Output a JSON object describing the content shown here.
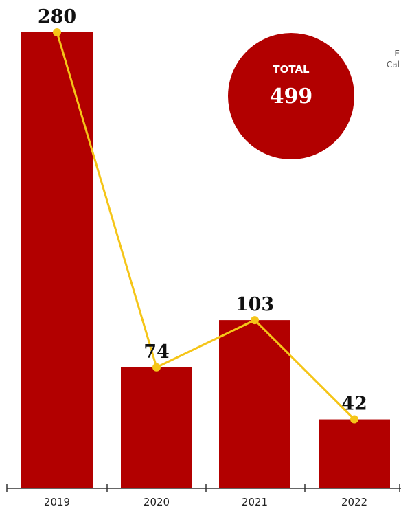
{
  "chart_data": {
    "type": "bar",
    "categories": [
      "2019",
      "2020",
      "2021",
      "2022"
    ],
    "values": [
      280,
      74,
      103,
      42
    ],
    "value_labels": [
      "280",
      "74",
      "103",
      "42"
    ],
    "ylim": [
      0,
      280
    ],
    "grid": false,
    "line_overlay": true,
    "bar_color": "#b20000",
    "line_color": "#f5c518",
    "axis_color": "#333333",
    "total": {
      "label": "TOTAL",
      "value": "499",
      "color": "#b20000"
    },
    "edge_text": [
      "E",
      "Cal"
    ]
  }
}
